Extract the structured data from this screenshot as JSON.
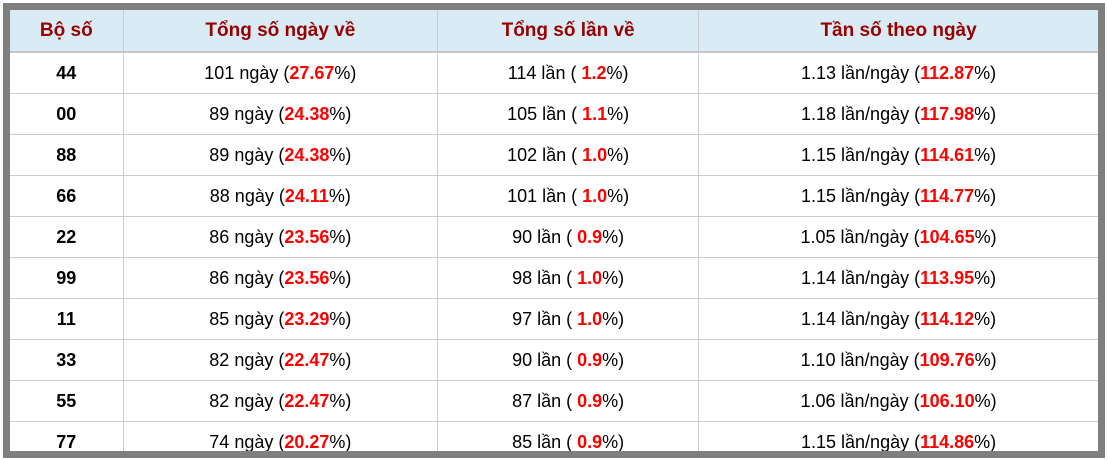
{
  "colors": {
    "header_bg": "#d9ecf6",
    "header_text": "#990000",
    "value_red": "#ff0000",
    "frame_gray": "#7f7f7f",
    "cell_border": "#cccccc",
    "row_bg": "#ffffff",
    "text_black": "#000000"
  },
  "table": {
    "columns": [
      {
        "label": "Bộ số"
      },
      {
        "label": "Tổng số ngày về"
      },
      {
        "label": "Tổng số lần về"
      },
      {
        "label": "Tần số theo ngày"
      }
    ],
    "rows": [
      {
        "pair": "44",
        "days_pre": "101 ngày (",
        "days_value": "27.67",
        "days_post": "%)",
        "times_pre": "114 lần ( ",
        "times_value": "1.2",
        "times_post": "%)",
        "freq_pre": "1.13 lần/ngày (",
        "freq_value": "112.87",
        "freq_post": "%)"
      },
      {
        "pair": "00",
        "days_pre": "89 ngày (",
        "days_value": "24.38",
        "days_post": "%)",
        "times_pre": "105 lần ( ",
        "times_value": "1.1",
        "times_post": "%)",
        "freq_pre": "1.18 lần/ngày (",
        "freq_value": "117.98",
        "freq_post": "%)"
      },
      {
        "pair": "88",
        "days_pre": "89 ngày (",
        "days_value": "24.38",
        "days_post": "%)",
        "times_pre": "102 lần ( ",
        "times_value": "1.0",
        "times_post": "%)",
        "freq_pre": "1.15 lần/ngày (",
        "freq_value": "114.61",
        "freq_post": "%)"
      },
      {
        "pair": "66",
        "days_pre": "88 ngày (",
        "days_value": "24.11",
        "days_post": "%)",
        "times_pre": "101 lần ( ",
        "times_value": "1.0",
        "times_post": "%)",
        "freq_pre": "1.15 lần/ngày (",
        "freq_value": "114.77",
        "freq_post": "%)"
      },
      {
        "pair": "22",
        "days_pre": "86 ngày (",
        "days_value": "23.56",
        "days_post": "%)",
        "times_pre": "90 lần ( ",
        "times_value": "0.9",
        "times_post": "%)",
        "freq_pre": "1.05 lần/ngày (",
        "freq_value": "104.65",
        "freq_post": "%)"
      },
      {
        "pair": "99",
        "days_pre": "86 ngày (",
        "days_value": "23.56",
        "days_post": "%)",
        "times_pre": "98 lần ( ",
        "times_value": "1.0",
        "times_post": "%)",
        "freq_pre": "1.14 lần/ngày (",
        "freq_value": "113.95",
        "freq_post": "%)"
      },
      {
        "pair": "11",
        "days_pre": "85 ngày (",
        "days_value": "23.29",
        "days_post": "%)",
        "times_pre": "97 lần ( ",
        "times_value": "1.0",
        "times_post": "%)",
        "freq_pre": "1.14 lần/ngày (",
        "freq_value": "114.12",
        "freq_post": "%)"
      },
      {
        "pair": "33",
        "days_pre": "82 ngày (",
        "days_value": "22.47",
        "days_post": "%)",
        "times_pre": "90 lần ( ",
        "times_value": "0.9",
        "times_post": "%)",
        "freq_pre": "1.10 lần/ngày (",
        "freq_value": "109.76",
        "freq_post": "%)"
      },
      {
        "pair": "55",
        "days_pre": "82 ngày (",
        "days_value": "22.47",
        "days_post": "%)",
        "times_pre": "87 lần ( ",
        "times_value": "0.9",
        "times_post": "%)",
        "freq_pre": "1.06 lần/ngày (",
        "freq_value": "106.10",
        "freq_post": "%)"
      },
      {
        "pair": "77",
        "days_pre": "74 ngày (",
        "days_value": "20.27",
        "days_post": "%)",
        "times_pre": "85 lần ( ",
        "times_value": "0.9",
        "times_post": "%)",
        "freq_pre": "1.15 lần/ngày (",
        "freq_value": "114.86",
        "freq_post": "%)"
      }
    ]
  }
}
